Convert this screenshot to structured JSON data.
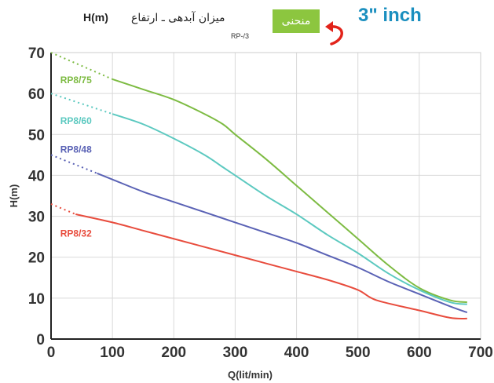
{
  "header": {
    "unit_label": "H(m)",
    "title_fa": "میزان آبدهی ـ ارتفاع",
    "badge_label": "منحنی",
    "model_code": "RP-/3",
    "size_label": "3\" inch"
  },
  "colors": {
    "badge_bg": "#8cc63f",
    "badge_text": "#ffffff",
    "arrow": "#e2231a",
    "size_label": "#1b8fbf",
    "grid": "#d9d9d9",
    "axis_text": "#333333"
  },
  "chart_data": {
    "type": "line",
    "xlabel": "Q(lit/min)",
    "ylabel": "H(m)",
    "xlim": [
      0,
      700
    ],
    "ylim": [
      0,
      70
    ],
    "x_ticks": [
      0,
      100,
      200,
      300,
      400,
      500,
      600,
      700
    ],
    "y_ticks": [
      0,
      10,
      20,
      30,
      40,
      50,
      60,
      70
    ],
    "grid": true,
    "series": [
      {
        "name": "RP8/75",
        "color": "#7dbb42",
        "dotted": [
          [
            0,
            70
          ],
          [
            100,
            63.5
          ]
        ],
        "solid": [
          [
            100,
            63.5
          ],
          [
            150,
            61
          ],
          [
            200,
            58.5
          ],
          [
            250,
            55
          ],
          [
            280,
            52.5
          ],
          [
            300,
            50
          ],
          [
            350,
            44
          ],
          [
            400,
            37.5
          ],
          [
            450,
            31
          ],
          [
            500,
            24.5
          ],
          [
            550,
            18
          ],
          [
            600,
            12.5
          ],
          [
            650,
            9.5
          ],
          [
            678,
            9
          ]
        ]
      },
      {
        "name": "RP8/60",
        "color": "#5cc9c0",
        "dotted": [
          [
            0,
            60
          ],
          [
            100,
            55
          ]
        ],
        "solid": [
          [
            100,
            55
          ],
          [
            150,
            52.5
          ],
          [
            200,
            49
          ],
          [
            250,
            45
          ],
          [
            280,
            42
          ],
          [
            300,
            40
          ],
          [
            350,
            35
          ],
          [
            400,
            30.5
          ],
          [
            450,
            25.5
          ],
          [
            500,
            21
          ],
          [
            550,
            16
          ],
          [
            600,
            12
          ],
          [
            650,
            9
          ],
          [
            678,
            8.5
          ]
        ]
      },
      {
        "name": "RP8/48",
        "color": "#5a62b5",
        "dotted": [
          [
            0,
            45
          ],
          [
            75,
            40.5
          ]
        ],
        "solid": [
          [
            75,
            40.5
          ],
          [
            100,
            39
          ],
          [
            150,
            36
          ],
          [
            200,
            33.5
          ],
          [
            250,
            31
          ],
          [
            300,
            28.5
          ],
          [
            350,
            26
          ],
          [
            400,
            23.5
          ],
          [
            450,
            20.5
          ],
          [
            500,
            17.5
          ],
          [
            550,
            14
          ],
          [
            600,
            11
          ],
          [
            650,
            8
          ],
          [
            678,
            6.5
          ]
        ]
      },
      {
        "name": "RP8/32",
        "color": "#e84c3d",
        "dotted": [
          [
            0,
            33
          ],
          [
            40,
            30.5
          ]
        ],
        "solid": [
          [
            40,
            30.5
          ],
          [
            100,
            28.5
          ],
          [
            150,
            26.5
          ],
          [
            200,
            24.5
          ],
          [
            250,
            22.5
          ],
          [
            300,
            20.5
          ],
          [
            350,
            18.5
          ],
          [
            400,
            16.5
          ],
          [
            450,
            14.5
          ],
          [
            500,
            12
          ],
          [
            530,
            9.5
          ],
          [
            600,
            7
          ],
          [
            650,
            5.2
          ],
          [
            678,
            5
          ]
        ]
      }
    ],
    "series_labels": [
      {
        "text": "RP8/75",
        "x": 15,
        "y": 63.5
      },
      {
        "text": "RP8/60",
        "x": 15,
        "y": 53.5
      },
      {
        "text": "RP8/48",
        "x": 15,
        "y": 46.5
      },
      {
        "text": "RP8/32",
        "x": 15,
        "y": 26
      }
    ]
  }
}
